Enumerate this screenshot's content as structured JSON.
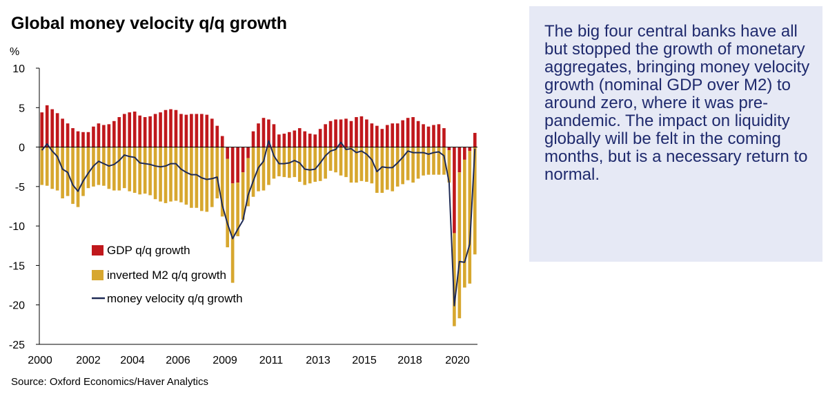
{
  "title": "Global money velocity q/q growth",
  "source": "Source: Oxford Economics/Haver Analytics",
  "callout": "The big four central banks have all but stopped the growth of monetary aggregates, bringing money velocity growth (nominal GDP over M2) to around zero, where it was pre-pandemic. The impact on liquidity globally will be felt in the coming months, but is a necessary return to normal.",
  "colors": {
    "gdp": "#c0181c",
    "m2": "#d7a72f",
    "velocity": "#1e2a55",
    "callout_bg": "#e6e9f5",
    "callout_text": "#1f2a6d"
  },
  "chart_data": {
    "type": "bar",
    "ylabel": "%",
    "xlabel": "",
    "ylim": [
      -25,
      10
    ],
    "yticks": [
      10,
      5,
      0,
      -5,
      -10,
      -15,
      -20,
      -25
    ],
    "xtick_labels": [
      "2000",
      "2002",
      "2004",
      "2006",
      "2009",
      "2011",
      "2013",
      "2015",
      "2018",
      "2020"
    ],
    "legend": [
      "GDP q/q growth",
      "inverted M2 q/q growth",
      "money velocity q/q growth"
    ],
    "legend_position": "bottom-left",
    "x_start": "2000 Q1",
    "frequency": "quarterly",
    "series": [
      {
        "name": "GDP q/q growth",
        "kind": "bar",
        "values": [
          4.4,
          5.3,
          4.8,
          4.3,
          3.6,
          3.0,
          2.4,
          2.0,
          1.9,
          1.9,
          2.6,
          3.0,
          2.8,
          2.9,
          3.3,
          3.8,
          4.2,
          4.4,
          4.5,
          4.0,
          3.8,
          3.9,
          4.2,
          4.4,
          4.7,
          4.8,
          4.7,
          4.2,
          4.1,
          4.2,
          4.2,
          4.2,
          4.1,
          3.6,
          2.7,
          1.4,
          -1.5,
          -4.6,
          -4.5,
          -3.2,
          -1.4,
          2.0,
          3.0,
          3.7,
          3.5,
          2.9,
          1.6,
          1.7,
          1.9,
          2.1,
          2.4,
          2.0,
          1.7,
          1.6,
          2.3,
          2.9,
          3.3,
          3.5,
          3.5,
          3.6,
          3.3,
          3.8,
          3.9,
          3.5,
          3.0,
          2.7,
          2.3,
          2.8,
          3.0,
          3.0,
          3.4,
          3.7,
          3.8,
          3.3,
          2.9,
          2.6,
          2.8,
          2.9,
          2.4,
          -0.4,
          -10.9,
          -3.2,
          -1.6,
          -0.5,
          1.8
        ]
      },
      {
        "name": "inverted M2 q/q growth",
        "kind": "bar",
        "values": [
          -4.8,
          -4.9,
          -5.3,
          -5.5,
          -6.5,
          -6.2,
          -7.2,
          -7.6,
          -6.2,
          -5.2,
          -5.0,
          -4.8,
          -4.9,
          -5.3,
          -5.5,
          -5.5,
          -5.2,
          -5.6,
          -5.8,
          -6.0,
          -5.9,
          -6.1,
          -6.6,
          -6.9,
          -7.1,
          -6.9,
          -6.8,
          -7.0,
          -7.3,
          -7.7,
          -7.7,
          -8.1,
          -8.2,
          -7.6,
          -6.5,
          -8.8,
          -11.2,
          -12.6,
          -6.8,
          -6.0,
          -6.1,
          -6.3,
          -5.6,
          -5.5,
          -4.8,
          -4.0,
          -3.7,
          -3.8,
          -3.9,
          -3.8,
          -4.4,
          -4.8,
          -4.6,
          -4.4,
          -4.3,
          -4.0,
          -3.0,
          -3.2,
          -3.6,
          -3.8,
          -4.5,
          -4.5,
          -4.3,
          -4.4,
          -4.6,
          -5.8,
          -5.8,
          -5.4,
          -5.6,
          -5.0,
          -4.7,
          -4.2,
          -4.5,
          -4.0,
          -3.6,
          -3.5,
          -3.5,
          -3.5,
          -3.5,
          -4.1,
          -11.8,
          -18.5,
          -16.2,
          -16.8,
          -13.6
        ]
      },
      {
        "name": "money velocity q/q growth",
        "kind": "line",
        "values": [
          -0.4,
          0.4,
          -0.5,
          -1.2,
          -2.8,
          -3.2,
          -4.8,
          -5.6,
          -4.3,
          -3.3,
          -2.4,
          -1.8,
          -2.1,
          -2.4,
          -2.2,
          -1.7,
          -1.0,
          -1.2,
          -1.3,
          -2.0,
          -2.1,
          -2.2,
          -2.4,
          -2.5,
          -2.4,
          -2.1,
          -2.1,
          -2.8,
          -3.2,
          -3.5,
          -3.5,
          -3.9,
          -4.1,
          -4.0,
          -3.8,
          -7.4,
          -9.7,
          -11.6,
          -10.4,
          -9.3,
          -6.1,
          -4.3,
          -2.6,
          -1.8,
          0.8,
          -1.1,
          -2.1,
          -2.1,
          -2.0,
          -1.7,
          -2.0,
          -2.8,
          -2.9,
          -2.8,
          -2.0,
          -1.1,
          -0.5,
          -0.3,
          0.6,
          -0.3,
          -0.2,
          -0.7,
          -0.5,
          -0.9,
          -1.6,
          -3.1,
          -2.5,
          -2.6,
          -2.6,
          -2.0,
          -1.3,
          -0.5,
          -0.7,
          -0.7,
          -0.7,
          -0.9,
          -0.7,
          -0.6,
          -1.1,
          -4.5,
          -20.1,
          -14.5,
          -14.6,
          -12.3,
          -0.2
        ]
      }
    ]
  }
}
